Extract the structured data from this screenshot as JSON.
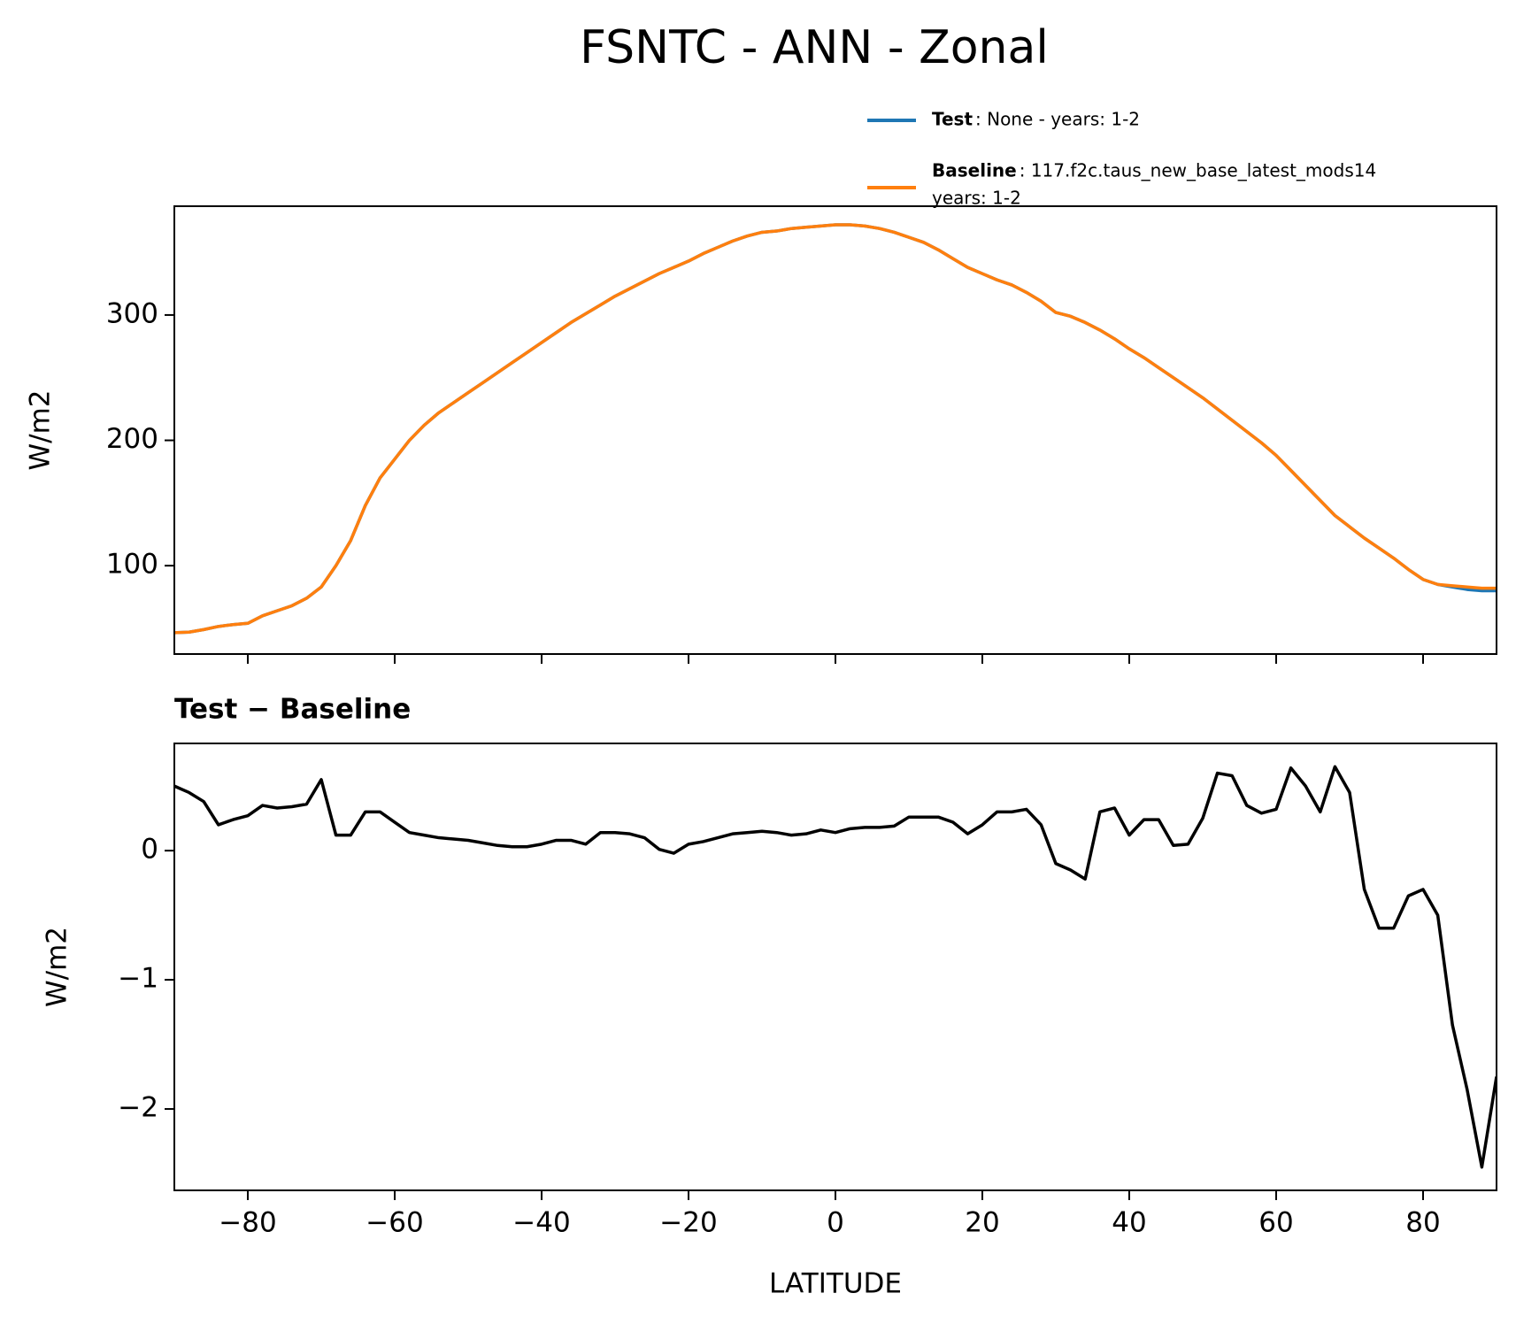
{
  "title": "FSNTC - ANN - Zonal",
  "chart_data": [
    {
      "type": "line",
      "ylabel": "W/m2",
      "x": [
        -90,
        -88,
        -86,
        -84,
        -82,
        -80,
        -78,
        -76,
        -74,
        -72,
        -70,
        -68,
        -66,
        -64,
        -62,
        -60,
        -58,
        -56,
        -54,
        -52,
        -50,
        -48,
        -46,
        -44,
        -42,
        -40,
        -38,
        -36,
        -34,
        -32,
        -30,
        -28,
        -26,
        -24,
        -22,
        -20,
        -18,
        -16,
        -14,
        -12,
        -10,
        -8,
        -6,
        -4,
        -2,
        0,
        2,
        4,
        6,
        8,
        10,
        12,
        14,
        16,
        18,
        20,
        22,
        24,
        26,
        28,
        30,
        32,
        34,
        36,
        38,
        40,
        42,
        44,
        46,
        48,
        50,
        52,
        54,
        56,
        58,
        60,
        62,
        64,
        66,
        68,
        70,
        72,
        74,
        76,
        78,
        80,
        82,
        84,
        86,
        88,
        90
      ],
      "series": [
        {
          "name": "Test",
          "label": [
            ": None - years: 1-2"
          ],
          "color": "#1f77b4",
          "values": [
            46.5,
            47,
            49,
            51.5,
            53,
            54,
            60,
            64,
            68,
            74,
            83,
            100,
            120,
            148,
            170,
            185,
            200,
            212,
            222,
            230,
            238,
            246,
            254,
            262,
            270,
            278,
            286,
            294,
            301,
            308,
            315,
            321,
            327,
            333,
            338,
            343,
            349,
            354,
            359,
            363,
            366,
            367,
            369,
            370,
            371,
            372,
            372,
            371,
            369,
            366,
            362,
            358,
            352,
            345,
            338,
            333,
            328,
            324,
            318,
            311,
            302,
            299,
            294,
            288,
            281,
            273,
            266,
            258,
            250,
            242,
            234,
            225,
            216,
            207,
            198,
            188,
            176,
            164,
            152,
            140,
            131,
            122,
            114,
            106,
            97,
            89,
            85,
            83,
            81,
            80,
            80
          ]
        },
        {
          "name": "Baseline",
          "label": [
            ": 117.f2c.taus_new_base_latest_mods14",
            "years: 1-2"
          ],
          "color": "#ff7f0e",
          "values": [
            46.5,
            47,
            49,
            51.5,
            53,
            54,
            60,
            64,
            68,
            74,
            83,
            100,
            120,
            148,
            170,
            185,
            200,
            212,
            222,
            230,
            238,
            246,
            254,
            262,
            270,
            278,
            286,
            294,
            301,
            308,
            315,
            321,
            327,
            333,
            338,
            343,
            349,
            354,
            359,
            363,
            366,
            367,
            369,
            370,
            371,
            372,
            372,
            371,
            369,
            366,
            362,
            358,
            352,
            345,
            338,
            333,
            328,
            324,
            318,
            311,
            302,
            299,
            294,
            288,
            281,
            273,
            266,
            258,
            250,
            242,
            234,
            225,
            216,
            207,
            198,
            188,
            176,
            164,
            152,
            140,
            131,
            122,
            114,
            106,
            97,
            89,
            85,
            84,
            83,
            82,
            82
          ]
        }
      ],
      "xlim": [
        -90,
        90
      ],
      "xticks": [
        {
          "value": -80,
          "label": "−80"
        },
        {
          "value": -60,
          "label": "−60"
        },
        {
          "value": -40,
          "label": "−40"
        },
        {
          "value": -20,
          "label": "−20"
        },
        0,
        20,
        40,
        60,
        80
      ],
      "ylim": [
        29.5,
        386.8
      ],
      "yticks": [
        100,
        200,
        300
      ]
    },
    {
      "type": "line",
      "title": "Test − Baseline",
      "xlabel": "LATITUDE",
      "ylabel": "W/m2",
      "x": [
        -90,
        -88,
        -86,
        -84,
        -82,
        -80,
        -78,
        -76,
        -74,
        -72,
        -70,
        -68,
        -66,
        -64,
        -62,
        -60,
        -58,
        -56,
        -54,
        -52,
        -50,
        -48,
        -46,
        -44,
        -42,
        -40,
        -38,
        -36,
        -34,
        -32,
        -30,
        -28,
        -26,
        -24,
        -22,
        -20,
        -18,
        -16,
        -14,
        -12,
        -10,
        -8,
        -6,
        -4,
        -2,
        0,
        2,
        4,
        6,
        8,
        10,
        12,
        14,
        16,
        18,
        20,
        22,
        24,
        26,
        28,
        30,
        32,
        34,
        36,
        38,
        40,
        42,
        44,
        46,
        48,
        50,
        52,
        54,
        56,
        58,
        60,
        62,
        64,
        66,
        68,
        70,
        72,
        74,
        76,
        78,
        80,
        82,
        84,
        86,
        88,
        90
      ],
      "series": [
        {
          "color": "#000000",
          "values": [
            0.5,
            0.45,
            0.38,
            0.2,
            0.24,
            0.27,
            0.35,
            0.33,
            0.34,
            0.36,
            0.55,
            0.12,
            0.12,
            0.3,
            0.3,
            0.22,
            0.14,
            0.12,
            0.1,
            0.09,
            0.08,
            0.06,
            0.04,
            0.03,
            0.03,
            0.05,
            0.08,
            0.08,
            0.05,
            0.14,
            0.14,
            0.13,
            0.1,
            0.01,
            -0.02,
            0.05,
            0.07,
            0.1,
            0.13,
            0.14,
            0.15,
            0.14,
            0.12,
            0.13,
            0.16,
            0.14,
            0.17,
            0.18,
            0.18,
            0.19,
            0.26,
            0.26,
            0.26,
            0.22,
            0.13,
            0.2,
            0.3,
            0.3,
            0.32,
            0.2,
            -0.1,
            -0.15,
            -0.22,
            0.3,
            0.33,
            0.12,
            0.24,
            0.24,
            0.04,
            0.05,
            0.25,
            0.6,
            0.58,
            0.35,
            0.29,
            0.32,
            0.64,
            0.5,
            0.3,
            0.65,
            0.45,
            -0.3,
            -0.6,
            -0.6,
            -0.35,
            -0.3,
            -0.5,
            -1.35,
            -1.85,
            -2.45,
            -1.75
          ]
        }
      ],
      "xlim": [
        -90,
        90
      ],
      "xticks": [
        {
          "value": -80,
          "label": "−80"
        },
        {
          "value": -60,
          "label": "−60"
        },
        {
          "value": -40,
          "label": "−40"
        },
        {
          "value": -20,
          "label": "−20"
        },
        0,
        20,
        40,
        60,
        80
      ],
      "ylim": [
        -2.63,
        0.83
      ],
      "yticks": [
        {
          "value": -2,
          "label": "−2"
        },
        {
          "value": -1,
          "label": "−1"
        },
        0
      ]
    }
  ]
}
